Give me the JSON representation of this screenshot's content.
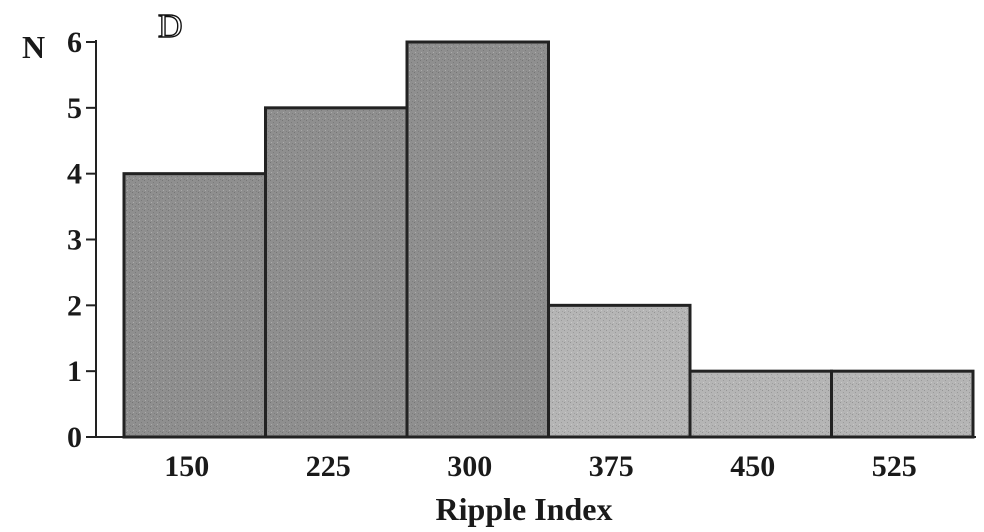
{
  "panel_label": "D",
  "chart_data": {
    "type": "bar",
    "categories": [
      "150",
      "225",
      "300",
      "375",
      "450",
      "525"
    ],
    "values": [
      4,
      5,
      6,
      2,
      1,
      1
    ],
    "xlabel": "Ripple Index",
    "ylabel": "N",
    "ylim": [
      0,
      6
    ],
    "yticks": [
      "0",
      "1",
      "2",
      "3",
      "4",
      "5",
      "6"
    ],
    "grid": false,
    "legend": "none",
    "colors": {
      "bar_dark": "#8f8f8f",
      "bar_light": "#b5b5b5",
      "outline": "#222222"
    }
  }
}
